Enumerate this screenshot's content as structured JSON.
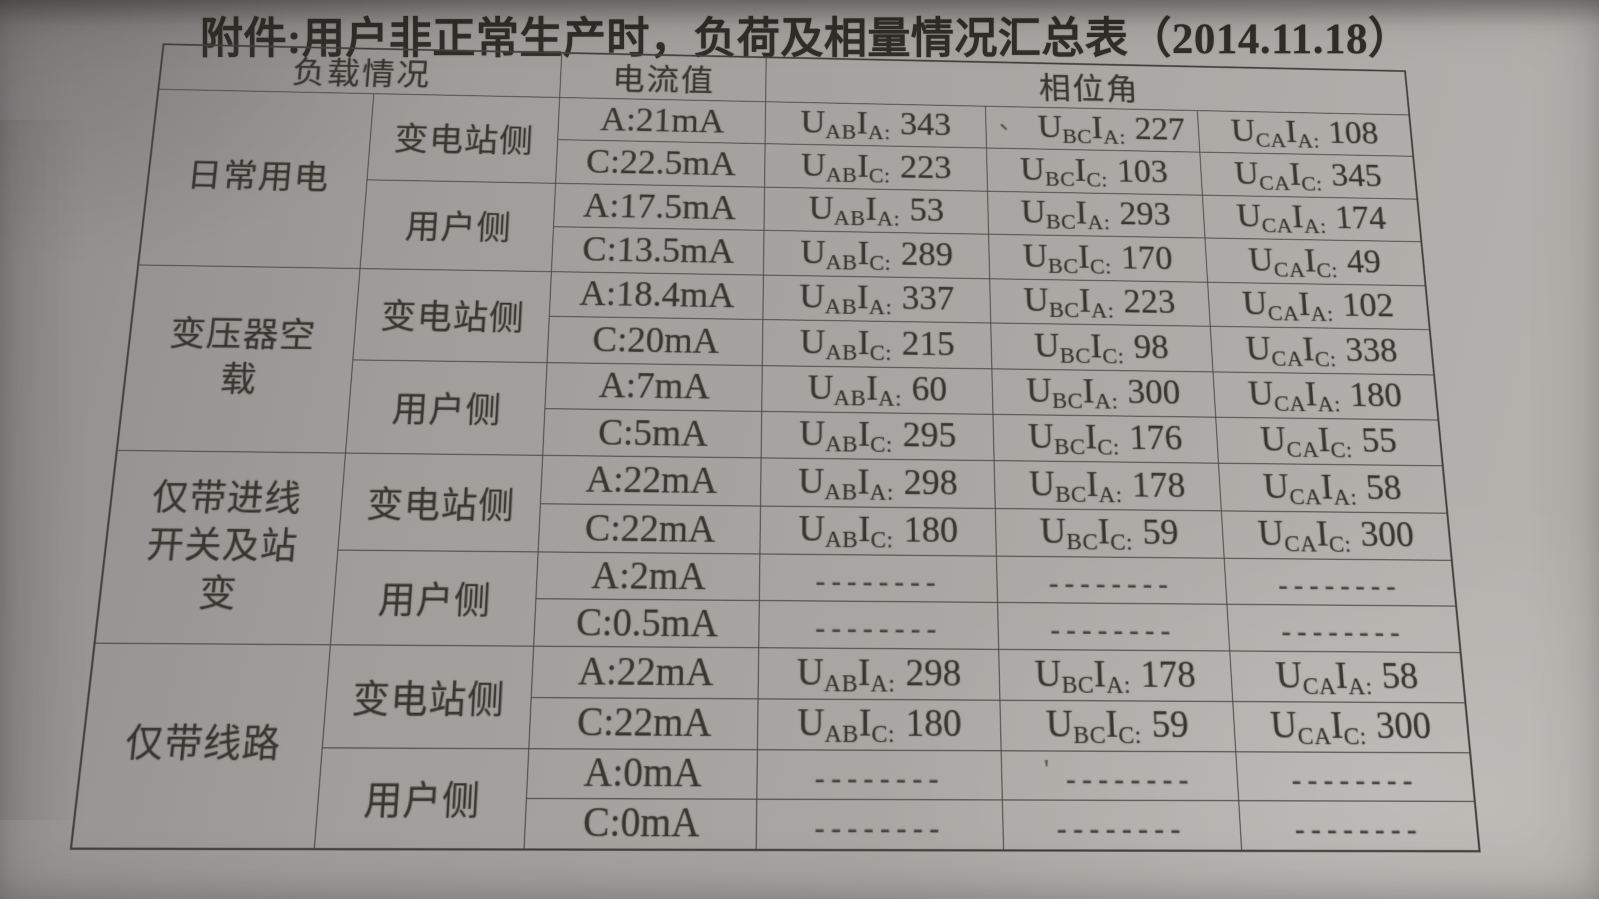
{
  "title": "附件:用户非正常生产时，负荷及相量情况汇总表（2014.11.18）",
  "table": {
    "header": {
      "load": "负载情况",
      "current": "电流值",
      "phase": "相位角"
    },
    "dash": "--------",
    "groups": [
      {
        "name": "日常用电",
        "sides": [
          {
            "name": "变电站侧",
            "rows": [
              {
                "current": "A:21mA",
                "phases": [
                  {
                    "u": "AB",
                    "i": "A",
                    "v": "343"
                  },
                  {
                    "u": "BC",
                    "i": "A",
                    "v": "227",
                    "pre": "、"
                  },
                  {
                    "u": "CA",
                    "i": "A",
                    "v": "108"
                  }
                ]
              },
              {
                "current": "C:22.5mA",
                "phases": [
                  {
                    "u": "AB",
                    "i": "C",
                    "v": "223"
                  },
                  {
                    "u": "BC",
                    "i": "C",
                    "v": "103"
                  },
                  {
                    "u": "CA",
                    "i": "C",
                    "v": "345"
                  }
                ]
              }
            ]
          },
          {
            "name": "用户侧",
            "rows": [
              {
                "current": "A:17.5mA",
                "phases": [
                  {
                    "u": "AB",
                    "i": "A",
                    "v": "53"
                  },
                  {
                    "u": "BC",
                    "i": "A",
                    "v": "293"
                  },
                  {
                    "u": "CA",
                    "i": "A",
                    "v": "174"
                  }
                ]
              },
              {
                "current": "C:13.5mA",
                "phases": [
                  {
                    "u": "AB",
                    "i": "C",
                    "v": "289"
                  },
                  {
                    "u": "BC",
                    "i": "C",
                    "v": "170"
                  },
                  {
                    "u": "CA",
                    "i": "C",
                    "v": "49"
                  }
                ]
              }
            ]
          }
        ]
      },
      {
        "name": "变压器空载",
        "sides": [
          {
            "name": "变电站侧",
            "rows": [
              {
                "current": "A:18.4mA",
                "phases": [
                  {
                    "u": "AB",
                    "i": "A",
                    "v": "337"
                  },
                  {
                    "u": "BC",
                    "i": "A",
                    "v": "223"
                  },
                  {
                    "u": "CA",
                    "i": "A",
                    "v": "102"
                  }
                ]
              },
              {
                "current": "C:20mA",
                "phases": [
                  {
                    "u": "AB",
                    "i": "C",
                    "v": "215"
                  },
                  {
                    "u": "BC",
                    "i": "C",
                    "v": "98"
                  },
                  {
                    "u": "CA",
                    "i": "C",
                    "v": "338"
                  }
                ]
              }
            ]
          },
          {
            "name": "用户侧",
            "rows": [
              {
                "current": "A:7mA",
                "phases": [
                  {
                    "u": "AB",
                    "i": "A",
                    "v": "60"
                  },
                  {
                    "u": "BC",
                    "i": "A",
                    "v": "300"
                  },
                  {
                    "u": "CA",
                    "i": "A",
                    "v": "180"
                  }
                ]
              },
              {
                "current": "C:5mA",
                "phases": [
                  {
                    "u": "AB",
                    "i": "C",
                    "v": "295"
                  },
                  {
                    "u": "BC",
                    "i": "C",
                    "v": "176"
                  },
                  {
                    "u": "CA",
                    "i": "C",
                    "v": "55"
                  }
                ]
              }
            ]
          }
        ]
      },
      {
        "name": "仅带进线开关及站变",
        "sides": [
          {
            "name": "变电站侧",
            "rows": [
              {
                "current": "A:22mA",
                "phases": [
                  {
                    "u": "AB",
                    "i": "A",
                    "v": "298"
                  },
                  {
                    "u": "BC",
                    "i": "A",
                    "v": "178"
                  },
                  {
                    "u": "CA",
                    "i": "A",
                    "v": "58"
                  }
                ]
              },
              {
                "current": "C:22mA",
                "phases": [
                  {
                    "u": "AB",
                    "i": "C",
                    "v": "180"
                  },
                  {
                    "u": "BC",
                    "i": "C",
                    "v": "59"
                  },
                  {
                    "u": "CA",
                    "i": "C",
                    "v": "300"
                  }
                ]
              }
            ]
          },
          {
            "name": "用户侧",
            "rows": [
              {
                "current": "A:2mA",
                "phases": [
                  {
                    "dash": true
                  },
                  {
                    "dash": true
                  },
                  {
                    "dash": true
                  }
                ]
              },
              {
                "current": "C:0.5mA",
                "phases": [
                  {
                    "dash": true
                  },
                  {
                    "dash": true
                  },
                  {
                    "dash": true
                  }
                ]
              }
            ]
          }
        ]
      },
      {
        "name": "仅带线路",
        "sides": [
          {
            "name": "变电站侧",
            "rows": [
              {
                "current": "A:22mA",
                "phases": [
                  {
                    "u": "AB",
                    "i": "A",
                    "v": "298"
                  },
                  {
                    "u": "BC",
                    "i": "A",
                    "v": "178"
                  },
                  {
                    "u": "CA",
                    "i": "A",
                    "v": "58"
                  }
                ]
              },
              {
                "current": "C:22mA",
                "phases": [
                  {
                    "u": "AB",
                    "i": "C",
                    "v": "180"
                  },
                  {
                    "u": "BC",
                    "i": "C",
                    "v": "59"
                  },
                  {
                    "u": "CA",
                    "i": "C",
                    "v": "300"
                  }
                ]
              }
            ]
          },
          {
            "name": "用户侧",
            "rows": [
              {
                "current": "A:0mA",
                "phases": [
                  {
                    "dash": true
                  },
                  {
                    "dash": true,
                    "pre": "'"
                  },
                  {
                    "dash": true
                  }
                ]
              },
              {
                "current": "C:0mA",
                "phases": [
                  {
                    "dash": true
                  },
                  {
                    "dash": true
                  },
                  {
                    "dash": true
                  }
                ]
              }
            ]
          }
        ]
      }
    ]
  }
}
